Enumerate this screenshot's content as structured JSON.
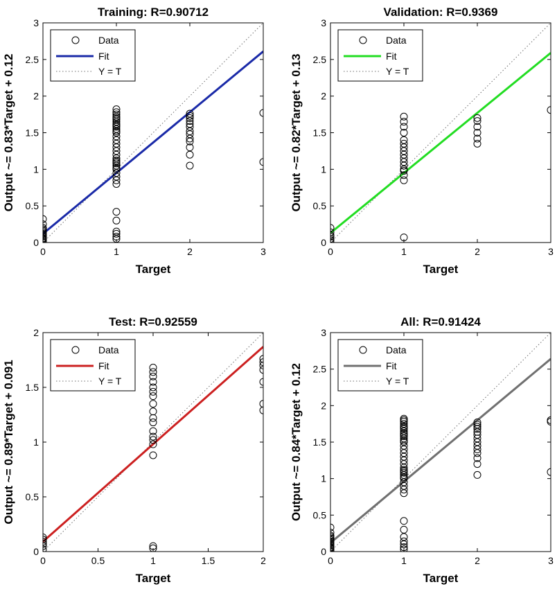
{
  "colors": {
    "background": "#ffffff",
    "axes": "#000000",
    "data_marker": "#000000",
    "identity_line": "#6b6b6b"
  },
  "legend": {
    "placement": "top-left",
    "entries": [
      "Data",
      "Fit",
      "Y = T"
    ]
  },
  "chart_data": [
    {
      "type": "scatter",
      "title": "Training: R=0.90712",
      "xlabel": "Target",
      "ylabel": "Output ~= 0.83*Target + 0.12",
      "xlim": [
        0,
        3
      ],
      "ylim": [
        0,
        3
      ],
      "xticks": [
        "0",
        "1",
        "2",
        "3"
      ],
      "yticks": [
        "0",
        "0.5",
        "1",
        "1.5",
        "2",
        "2.5",
        "3"
      ],
      "fit": {
        "slope": 0.83,
        "intercept": 0.12,
        "color": "#1a2aa8"
      },
      "points": {
        "x": [
          0,
          0,
          0,
          0,
          0,
          0,
          0,
          0,
          0,
          0,
          0,
          0,
          0,
          0,
          1,
          1,
          1,
          1,
          1,
          1,
          1,
          1,
          1,
          1,
          1,
          1,
          1,
          1,
          1,
          1,
          1,
          1,
          1,
          1,
          1,
          1,
          1,
          1,
          1,
          1,
          1,
          1,
          1,
          1,
          1,
          1,
          1,
          1,
          1,
          1,
          2,
          2,
          2,
          2,
          2,
          2,
          2,
          2,
          2,
          2,
          2,
          2,
          2,
          3,
          3
        ],
        "y": [
          0.0,
          0.02,
          0.04,
          0.05,
          0.06,
          0.08,
          0.1,
          0.12,
          0.14,
          0.16,
          0.18,
          0.2,
          0.25,
          0.32,
          0.05,
          0.08,
          0.12,
          0.15,
          0.3,
          0.42,
          0.8,
          0.85,
          0.9,
          0.95,
          1.0,
          1.02,
          1.05,
          1.08,
          1.1,
          1.12,
          1.15,
          1.2,
          1.25,
          1.3,
          1.35,
          1.4,
          1.45,
          1.5,
          1.52,
          1.55,
          1.58,
          1.6,
          1.62,
          1.65,
          1.68,
          1.7,
          1.72,
          1.75,
          1.78,
          1.82,
          1.05,
          1.2,
          1.3,
          1.38,
          1.42,
          1.48,
          1.52,
          1.58,
          1.62,
          1.66,
          1.7,
          1.73,
          1.76,
          1.1,
          1.77
        ]
      }
    },
    {
      "type": "scatter",
      "title": "Validation: R=0.9369",
      "xlabel": "Target",
      "ylabel": "Output ~= 0.82*Target + 0.13",
      "xlim": [
        0,
        3
      ],
      "ylim": [
        0,
        3
      ],
      "xticks": [
        "0",
        "1",
        "2",
        "3"
      ],
      "yticks": [
        "0",
        "0.5",
        "1",
        "1.5",
        "2",
        "2.5",
        "3"
      ],
      "fit": {
        "slope": 0.82,
        "intercept": 0.13,
        "color": "#22dd22"
      },
      "points": {
        "x": [
          0,
          0,
          0,
          0,
          0,
          0,
          0,
          1,
          1,
          1,
          1,
          1,
          1,
          1,
          1,
          1,
          1,
          1,
          1,
          1,
          1,
          1,
          1,
          1,
          2,
          2,
          2,
          2,
          2,
          2,
          3
        ],
        "y": [
          0.0,
          0.03,
          0.05,
          0.08,
          0.1,
          0.14,
          0.2,
          0.07,
          0.85,
          0.92,
          0.98,
          1.0,
          1.05,
          1.1,
          1.15,
          1.2,
          1.25,
          1.3,
          1.35,
          1.4,
          1.5,
          1.58,
          1.65,
          1.72,
          1.35,
          1.42,
          1.5,
          1.58,
          1.66,
          1.7,
          1.81
        ]
      }
    },
    {
      "type": "scatter",
      "title": "Test: R=0.92559",
      "xlabel": "Target",
      "ylabel": "Output ~= 0.89*Target + 0.091",
      "xlim": [
        0,
        2
      ],
      "ylim": [
        0,
        2
      ],
      "xticks": [
        "0",
        "0.5",
        "1",
        "1.5",
        "2"
      ],
      "yticks": [
        "0",
        "0.5",
        "1",
        "1.5",
        "2"
      ],
      "fit": {
        "slope": 0.89,
        "intercept": 0.091,
        "color": "#cc2020"
      },
      "points": {
        "x": [
          0,
          0,
          0,
          0,
          0,
          0,
          1,
          1,
          1,
          1,
          1,
          1,
          1,
          1,
          1,
          1,
          1,
          1,
          1,
          1,
          1,
          1,
          1,
          1,
          2,
          2,
          2,
          2,
          2,
          2,
          2
        ],
        "y": [
          0.02,
          0.05,
          0.07,
          0.09,
          0.11,
          0.13,
          0.03,
          0.05,
          0.88,
          0.98,
          1.02,
          1.05,
          1.1,
          1.18,
          1.22,
          1.28,
          1.35,
          1.42,
          1.46,
          1.5,
          1.55,
          1.6,
          1.64,
          1.68,
          1.29,
          1.35,
          1.55,
          1.66,
          1.7,
          1.73,
          1.76
        ]
      }
    },
    {
      "type": "scatter",
      "title": "All: R=0.91424",
      "xlabel": "Target",
      "ylabel": "Output ~= 0.84*Target + 0.12",
      "xlim": [
        0,
        3
      ],
      "ylim": [
        0,
        3
      ],
      "xticks": [
        "0",
        "1",
        "2",
        "3"
      ],
      "yticks": [
        "0",
        "0.5",
        "1",
        "1.5",
        "2",
        "2.5",
        "3"
      ],
      "fit": {
        "slope": 0.84,
        "intercept": 0.12,
        "color": "#707070"
      },
      "points": {
        "x": [
          0,
          0,
          0,
          0,
          0,
          0,
          0,
          0,
          0,
          0,
          0,
          0,
          0,
          0,
          0,
          1,
          1,
          1,
          1,
          1,
          1,
          1,
          1,
          1,
          1,
          1,
          1,
          1,
          1,
          1,
          1,
          1,
          1,
          1,
          1,
          1,
          1,
          1,
          1,
          1,
          1,
          1,
          1,
          1,
          1,
          1,
          1,
          1,
          1,
          1,
          1,
          1,
          1,
          2,
          2,
          2,
          2,
          2,
          2,
          2,
          2,
          2,
          2,
          2,
          2,
          2,
          2,
          3,
          3,
          3
        ],
        "y": [
          0.0,
          0.02,
          0.04,
          0.05,
          0.06,
          0.08,
          0.1,
          0.12,
          0.14,
          0.16,
          0.18,
          0.2,
          0.22,
          0.26,
          0.33,
          0.03,
          0.06,
          0.1,
          0.14,
          0.2,
          0.3,
          0.42,
          0.8,
          0.85,
          0.9,
          0.95,
          1.0,
          1.02,
          1.05,
          1.08,
          1.1,
          1.12,
          1.15,
          1.2,
          1.25,
          1.3,
          1.35,
          1.4,
          1.45,
          1.5,
          1.52,
          1.55,
          1.58,
          1.6,
          1.62,
          1.65,
          1.68,
          1.7,
          1.72,
          1.75,
          1.78,
          1.8,
          1.82,
          1.05,
          1.2,
          1.28,
          1.35,
          1.4,
          1.45,
          1.5,
          1.55,
          1.6,
          1.64,
          1.68,
          1.71,
          1.74,
          1.77,
          1.09,
          1.78,
          1.8
        ]
      }
    }
  ]
}
